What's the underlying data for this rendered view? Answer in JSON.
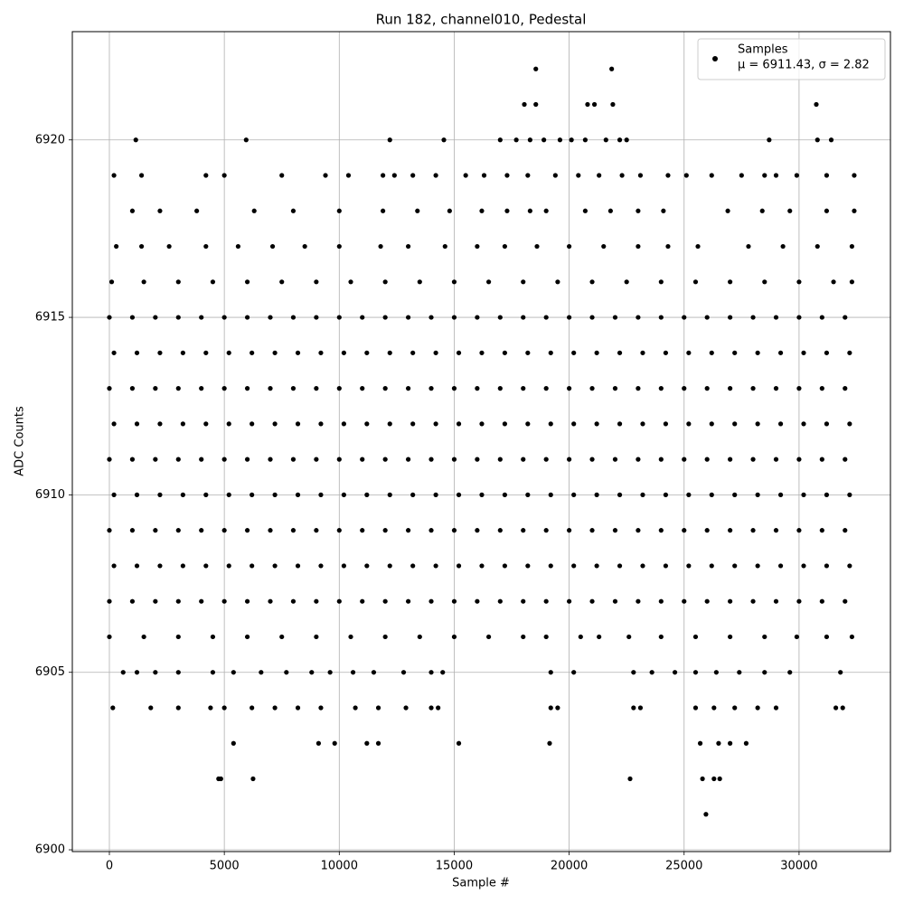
{
  "chart_data": {
    "type": "scatter",
    "title": "Run 182, channel010, Pedestal",
    "x_label": "Sample #",
    "y_label": "ADC Counts",
    "xlim": [
      -1612,
      33975
    ],
    "ylim": [
      6899.95,
      6923.05
    ],
    "xticks": [
      0,
      5000,
      10000,
      15000,
      20000,
      25000,
      30000
    ],
    "yticks": [
      6900,
      6905,
      6910,
      6915,
      6920
    ],
    "grid": true,
    "legend": "upper right",
    "annotation": "μ = 6911.43, σ = 2.82",
    "series": [
      {
        "name": "Samples",
        "color": "#000000",
        "x": [
          0,
          1000,
          2000,
          3000,
          4000,
          5000,
          6000,
          7000,
          8000,
          9000,
          10000,
          11000,
          12000,
          13000,
          14000,
          15000,
          16000,
          17000,
          18000,
          19000,
          20000,
          21000,
          22000,
          23000,
          24000,
          25000,
          26000,
          27000,
          28000,
          29000,
          30000,
          31000,
          32000,
          200,
          1200,
          2200,
          3200,
          4200,
          5200,
          6200,
          7200,
          8200,
          9200,
          10200,
          11200,
          12200,
          13200,
          14200,
          15200,
          16200,
          17200,
          18200,
          19200,
          20200,
          21200,
          22200,
          23200,
          24200,
          25200,
          26200,
          27200,
          28200,
          29200,
          30200,
          31200,
          32200,
          0,
          1000,
          2000,
          3000,
          4000,
          5000,
          6000,
          7000,
          8000,
          9000,
          10000,
          11000,
          12000,
          13000,
          14000,
          15000,
          16000,
          17000,
          18000,
          19000,
          20000,
          21000,
          22000,
          23000,
          24000,
          25000,
          26000,
          27000,
          28000,
          29000,
          30000,
          31000,
          32000,
          200,
          1200,
          2200,
          3200,
          4200,
          5200,
          6200,
          7200,
          8200,
          9200,
          10200,
          11200,
          12200,
          13200,
          14200,
          15200,
          16200,
          17200,
          18200,
          19200,
          20200,
          21200,
          22200,
          23200,
          24200,
          25200,
          26200,
          27200,
          28200,
          29200,
          30200,
          31200,
          32200,
          0,
          1000,
          2000,
          3000,
          4000,
          5000,
          6000,
          7000,
          8000,
          9000,
          10000,
          11000,
          12000,
          13000,
          14000,
          15000,
          16000,
          17000,
          18000,
          19000,
          20000,
          21000,
          22000,
          23000,
          24000,
          25000,
          26000,
          27000,
          28000,
          29000,
          30000,
          31000,
          32000,
          200,
          1200,
          2200,
          3200,
          4200,
          5200,
          6200,
          7200,
          8200,
          9200,
          10200,
          11200,
          12200,
          13200,
          14200,
          15200,
          16200,
          17200,
          18200,
          19200,
          20200,
          21200,
          22200,
          23200,
          24200,
          25200,
          26200,
          27200,
          28200,
          29200,
          30200,
          31200,
          32200,
          0,
          1000,
          2000,
          3000,
          4000,
          5000,
          6000,
          7000,
          8000,
          9000,
          10000,
          11000,
          12000,
          13000,
          14000,
          15000,
          16000,
          17000,
          18000,
          19000,
          20000,
          21000,
          22000,
          23000,
          24000,
          25000,
          26000,
          27000,
          28000,
          29000,
          30000,
          31000,
          32000,
          200,
          1200,
          2200,
          3200,
          4200,
          5200,
          6200,
          7200,
          8200,
          9200,
          10200,
          11200,
          12200,
          13200,
          14200,
          15200,
          16200,
          17200,
          18200,
          19200,
          20200,
          21200,
          22200,
          23200,
          24200,
          25200,
          26200,
          27200,
          28200,
          29200,
          30200,
          31200,
          32200,
          0,
          1000,
          2000,
          3000,
          4000,
          5000,
          6000,
          7000,
          8000,
          9000,
          10000,
          11000,
          12000,
          13000,
          14000,
          15000,
          16000,
          17000,
          18000,
          19000,
          20000,
          21000,
          22000,
          23000,
          24000,
          25000,
          26000,
          27000,
          28000,
          29000,
          30000,
          31000,
          32000,
          100,
          1500,
          3000,
          4500,
          6000,
          7500,
          9000,
          10500,
          12000,
          13500,
          15000,
          16500,
          18000,
          19500,
          21000,
          22500,
          24000,
          25500,
          27000,
          28500,
          30000,
          31500,
          32300,
          300,
          1400,
          2600,
          4200,
          5600,
          7100,
          8500,
          10000,
          11800,
          13000,
          14600,
          16000,
          17200,
          18600,
          20000,
          21500,
          23000,
          24300,
          25600,
          27800,
          29300,
          30800,
          32300,
          1000,
          2200,
          3800,
          6300,
          8000,
          10000,
          11900,
          13400,
          14800,
          16200,
          17300,
          18300,
          19000,
          20700,
          21800,
          23000,
          24100,
          26900,
          28400,
          29600,
          31200,
          32400,
          200,
          1400,
          4200,
          5000,
          7500,
          9400,
          10400,
          11900,
          12400,
          13200,
          14200,
          15500,
          16300,
          17300,
          18200,
          19400,
          20400,
          21300,
          22300,
          23100,
          24300,
          25100,
          26200,
          27500,
          28500,
          29000,
          29900,
          31200,
          32400,
          1150,
          5950,
          12200,
          14550,
          17000,
          17700,
          18300,
          18900,
          19600,
          20100,
          20700,
          21600,
          22200,
          22500,
          28700,
          30800,
          31400,
          18050,
          18550,
          20800,
          21100,
          21900,
          30750,
          18550,
          21850,
          0,
          1500,
          3000,
          4500,
          6000,
          7500,
          9000,
          10500,
          12000,
          13500,
          15000,
          16500,
          18000,
          19000,
          20500,
          21300,
          22600,
          24000,
          25500,
          27000,
          28500,
          29900,
          31200,
          32300,
          600,
          1200,
          2000,
          3000,
          4500,
          5400,
          6600,
          7700,
          8800,
          9600,
          10600,
          11500,
          12800,
          14000,
          14500,
          19200,
          20200,
          22800,
          23600,
          24600,
          25500,
          26400,
          27400,
          28500,
          29600,
          31800,
          150,
          1800,
          3000,
          4400,
          5000,
          6200,
          7200,
          8200,
          9200,
          10700,
          11700,
          12900,
          14000,
          14300,
          19200,
          19500,
          22800,
          23100,
          25500,
          26300,
          27200,
          28200,
          29000,
          31600,
          31900,
          5400,
          9100,
          9800,
          11200,
          11700,
          15200,
          19150,
          25700,
          26500,
          27000,
          27700,
          4750,
          4850,
          6250,
          22650,
          25800,
          26300,
          26550,
          25950
        ],
        "values": [
          6915,
          6915,
          6915,
          6915,
          6915,
          6915,
          6915,
          6915,
          6915,
          6915,
          6915,
          6915,
          6915,
          6915,
          6915,
          6915,
          6915,
          6915,
          6915,
          6915,
          6915,
          6915,
          6915,
          6915,
          6915,
          6915,
          6915,
          6915,
          6915,
          6915,
          6915,
          6915,
          6915,
          6914,
          6914,
          6914,
          6914,
          6914,
          6914,
          6914,
          6914,
          6914,
          6914,
          6914,
          6914,
          6914,
          6914,
          6914,
          6914,
          6914,
          6914,
          6914,
          6914,
          6914,
          6914,
          6914,
          6914,
          6914,
          6914,
          6914,
          6914,
          6914,
          6914,
          6914,
          6914,
          6914,
          6913,
          6913,
          6913,
          6913,
          6913,
          6913,
          6913,
          6913,
          6913,
          6913,
          6913,
          6913,
          6913,
          6913,
          6913,
          6913,
          6913,
          6913,
          6913,
          6913,
          6913,
          6913,
          6913,
          6913,
          6913,
          6913,
          6913,
          6913,
          6913,
          6913,
          6913,
          6913,
          6913,
          6912,
          6912,
          6912,
          6912,
          6912,
          6912,
          6912,
          6912,
          6912,
          6912,
          6912,
          6912,
          6912,
          6912,
          6912,
          6912,
          6912,
          6912,
          6912,
          6912,
          6912,
          6912,
          6912,
          6912,
          6912,
          6912,
          6912,
          6912,
          6912,
          6912,
          6912,
          6912,
          6912,
          6911,
          6911,
          6911,
          6911,
          6911,
          6911,
          6911,
          6911,
          6911,
          6911,
          6911,
          6911,
          6911,
          6911,
          6911,
          6911,
          6911,
          6911,
          6911,
          6911,
          6911,
          6911,
          6911,
          6911,
          6911,
          6911,
          6911,
          6911,
          6911,
          6911,
          6911,
          6911,
          6911,
          6910,
          6910,
          6910,
          6910,
          6910,
          6910,
          6910,
          6910,
          6910,
          6910,
          6910,
          6910,
          6910,
          6910,
          6910,
          6910,
          6910,
          6910,
          6910,
          6910,
          6910,
          6910,
          6910,
          6910,
          6910,
          6910,
          6910,
          6910,
          6910,
          6910,
          6910,
          6910,
          6910,
          6909,
          6909,
          6909,
          6909,
          6909,
          6909,
          6909,
          6909,
          6909,
          6909,
          6909,
          6909,
          6909,
          6909,
          6909,
          6909,
          6909,
          6909,
          6909,
          6909,
          6909,
          6909,
          6909,
          6909,
          6909,
          6909,
          6909,
          6909,
          6909,
          6909,
          6909,
          6909,
          6909,
          6908,
          6908,
          6908,
          6908,
          6908,
          6908,
          6908,
          6908,
          6908,
          6908,
          6908,
          6908,
          6908,
          6908,
          6908,
          6908,
          6908,
          6908,
          6908,
          6908,
          6908,
          6908,
          6908,
          6908,
          6908,
          6908,
          6908,
          6908,
          6908,
          6908,
          6908,
          6908,
          6908,
          6907,
          6907,
          6907,
          6907,
          6907,
          6907,
          6907,
          6907,
          6907,
          6907,
          6907,
          6907,
          6907,
          6907,
          6907,
          6907,
          6907,
          6907,
          6907,
          6907,
          6907,
          6907,
          6907,
          6907,
          6907,
          6907,
          6907,
          6907,
          6907,
          6907,
          6907,
          6907,
          6907,
          6916,
          6916,
          6916,
          6916,
          6916,
          6916,
          6916,
          6916,
          6916,
          6916,
          6916,
          6916,
          6916,
          6916,
          6916,
          6916,
          6916,
          6916,
          6916,
          6916,
          6916,
          6916,
          6916,
          6917,
          6917,
          6917,
          6917,
          6917,
          6917,
          6917,
          6917,
          6917,
          6917,
          6917,
          6917,
          6917,
          6917,
          6917,
          6917,
          6917,
          6917,
          6917,
          6917,
          6917,
          6917,
          6917,
          6918,
          6918,
          6918,
          6918,
          6918,
          6918,
          6918,
          6918,
          6918,
          6918,
          6918,
          6918,
          6918,
          6918,
          6918,
          6918,
          6918,
          6918,
          6918,
          6918,
          6918,
          6918,
          6919,
          6919,
          6919,
          6919,
          6919,
          6919,
          6919,
          6919,
          6919,
          6919,
          6919,
          6919,
          6919,
          6919,
          6919,
          6919,
          6919,
          6919,
          6919,
          6919,
          6919,
          6919,
          6919,
          6919,
          6919,
          6919,
          6919,
          6919,
          6919,
          6920,
          6920,
          6920,
          6920,
          6920,
          6920,
          6920,
          6920,
          6920,
          6920,
          6920,
          6920,
          6920,
          6920,
          6920,
          6920,
          6920,
          6921,
          6921,
          6921,
          6921,
          6921,
          6921,
          6922,
          6922,
          6906,
          6906,
          6906,
          6906,
          6906,
          6906,
          6906,
          6906,
          6906,
          6906,
          6906,
          6906,
          6906,
          6906,
          6906,
          6906,
          6906,
          6906,
          6906,
          6906,
          6906,
          6906,
          6906,
          6906,
          6905,
          6905,
          6905,
          6905,
          6905,
          6905,
          6905,
          6905,
          6905,
          6905,
          6905,
          6905,
          6905,
          6905,
          6905,
          6905,
          6905,
          6905,
          6905,
          6905,
          6905,
          6905,
          6905,
          6905,
          6905,
          6905,
          6904,
          6904,
          6904,
          6904,
          6904,
          6904,
          6904,
          6904,
          6904,
          6904,
          6904,
          6904,
          6904,
          6904,
          6904,
          6904,
          6904,
          6904,
          6904,
          6904,
          6904,
          6904,
          6904,
          6904,
          6904,
          6903,
          6903,
          6903,
          6903,
          6903,
          6903,
          6903,
          6903,
          6903,
          6903,
          6903,
          6902,
          6902,
          6902,
          6902,
          6902,
          6902,
          6902,
          6901
        ]
      }
    ]
  }
}
